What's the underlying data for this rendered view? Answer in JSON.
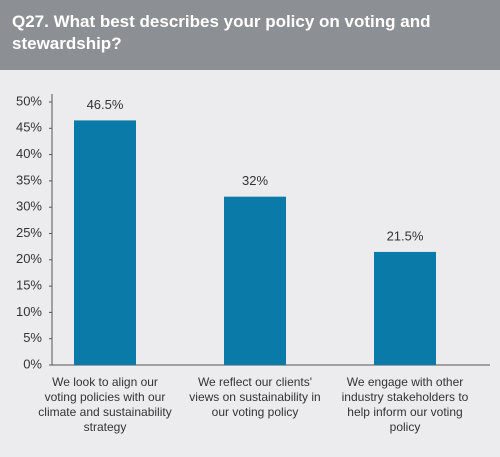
{
  "chart_data": {
    "type": "bar",
    "title": "Q27. What best describes your policy on voting and stewardship?",
    "categories": [
      "We look to align our voting policies with our climate and sustainability strategy",
      "We reflect our clients' views on sustainability in our voting policy",
      "We engage with other industry stakeholders to help inform our voting policy"
    ],
    "values": [
      46.5,
      32,
      21.5
    ],
    "value_labels": [
      "46.5%",
      "32%",
      "21.5%"
    ],
    "color": "#0a7aa8",
    "ylim": [
      0,
      50
    ],
    "yticks": [
      {
        "value": 0,
        "label": "0%"
      },
      {
        "value": 5,
        "label": "5%"
      },
      {
        "value": 10,
        "label": "10%"
      },
      {
        "value": 15,
        "label": "15%"
      },
      {
        "value": 20,
        "label": "20%"
      },
      {
        "value": 25,
        "label": "25%"
      },
      {
        "value": 30,
        "label": "30%"
      },
      {
        "value": 35,
        "label": "35%"
      },
      {
        "value": 40,
        "label": "40%"
      },
      {
        "value": 45,
        "label": "45%"
      },
      {
        "value": 50,
        "label": "50%"
      }
    ],
    "grid": false
  }
}
